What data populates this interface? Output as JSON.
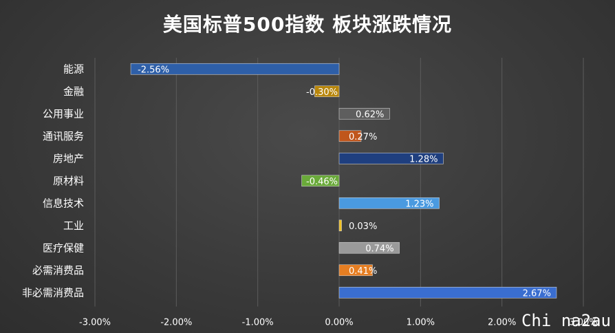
{
  "chart_data": {
    "type": "bar",
    "orientation": "horizontal",
    "title": "美国标普500指数 板块涨跌情况",
    "categories": [
      "能源",
      "金融",
      "公用事业",
      "通讯服务",
      "房地产",
      "原材料",
      "信息技术",
      "工业",
      "医疗保健",
      "必需消费品",
      "非必需消费品"
    ],
    "values": [
      -2.56,
      -0.3,
      0.62,
      0.27,
      1.28,
      -0.46,
      1.23,
      0.03,
      0.74,
      0.41,
      2.67
    ],
    "data_labels": [
      "-2.56%",
      "-0.30%",
      "0.62%",
      "0.27%",
      "1.28%",
      "-0.46%",
      "1.23%",
      "0.03%",
      "0.74%",
      "0.41%",
      "2.67%"
    ],
    "bar_colors": [
      "#2e5fa8",
      "#b8860b",
      "#5e5e5e",
      "#c0561c",
      "#1f3f7f",
      "#6aaa3a",
      "#4a9ae0",
      "#f0c020",
      "#9a9a9a",
      "#e67e22",
      "#3a6ed0"
    ],
    "xlim": [
      -3.0,
      3.0
    ],
    "xticks": [
      -3.0,
      -2.0,
      -1.0,
      0.0,
      1.0,
      2.0,
      3.0
    ],
    "xtick_labels": [
      "-3.00%",
      "-2.00%",
      "-1.00%",
      "0.00%",
      "1.00%",
      "2.00%",
      "3.00%"
    ],
    "grid": true,
    "xlabel": "",
    "ylabel": ""
  },
  "watermark": "Chi na2au"
}
